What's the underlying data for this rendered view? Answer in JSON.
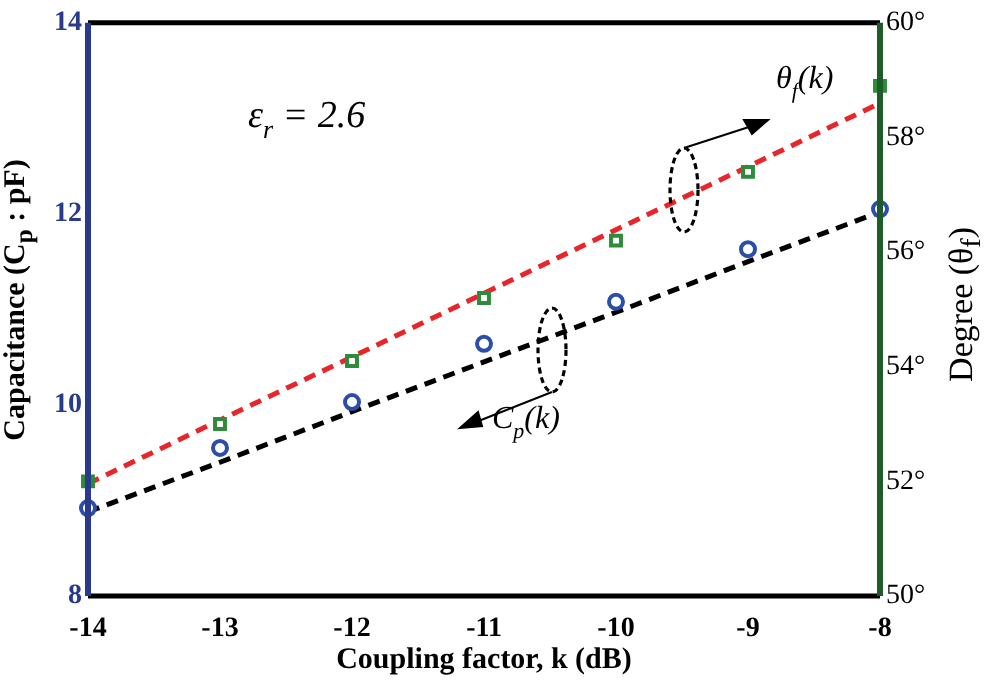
{
  "chart_data": {
    "type": "scatter",
    "xlabel": "Coupling factor, k (dB)",
    "ylabel": "Capacitance (C$_{p}$ : pF)",
    "y2label": "Degree (θ$_{f}$)",
    "x": [
      -14,
      -13,
      -12,
      -11,
      -10,
      -9,
      -8
    ],
    "series": [
      {
        "type": "scatter",
        "color": "#2b4fa8",
        "marker": "circle",
        "values": [
          8.92,
          9.55,
          10.03,
          10.64,
          11.08,
          11.63,
          12.05
        ]
      },
      {
        "type": "line",
        "color": "#000000",
        "line_style": "dashed",
        "marker": "none",
        "values": [
          8.88,
          9.4,
          9.93,
          10.45,
          10.97,
          11.5,
          12.02
        ]
      },
      {
        "type": "scatter",
        "axis": "y2",
        "color": "#2e8b3a",
        "marker": "square",
        "values": [
          52.0,
          53.0,
          54.1,
          55.2,
          56.2,
          57.4,
          58.9
        ]
      },
      {
        "type": "line",
        "axis": "y2",
        "color": "#e8262a",
        "line_style": "dashed",
        "marker": "none",
        "values": [
          51.96,
          53.07,
          54.17,
          55.28,
          56.39,
          57.49,
          58.6
        ]
      }
    ],
    "xlim": [
      -14,
      -8
    ],
    "xticks": [
      -14,
      -13,
      -12,
      -11,
      -10,
      -9,
      -8
    ],
    "ylim": [
      8,
      14
    ],
    "yticks": [
      8,
      10,
      12,
      14
    ],
    "y2lim": [
      50,
      60
    ],
    "y2ticks": [
      {
        "value": 50,
        "label": "50°"
      },
      {
        "value": 52,
        "label": "52°"
      },
      {
        "value": 54,
        "label": "54°"
      },
      {
        "value": 56,
        "label": "56°"
      },
      {
        "value": 58,
        "label": "58°"
      },
      {
        "value": 60,
        "label": "60°"
      }
    ],
    "grid": false,
    "legend": false,
    "annotations": [
      "ε$_{r}$ = 2.6",
      "θ$_{f}$(k)",
      "C$_{p}$(k)"
    ]
  }
}
